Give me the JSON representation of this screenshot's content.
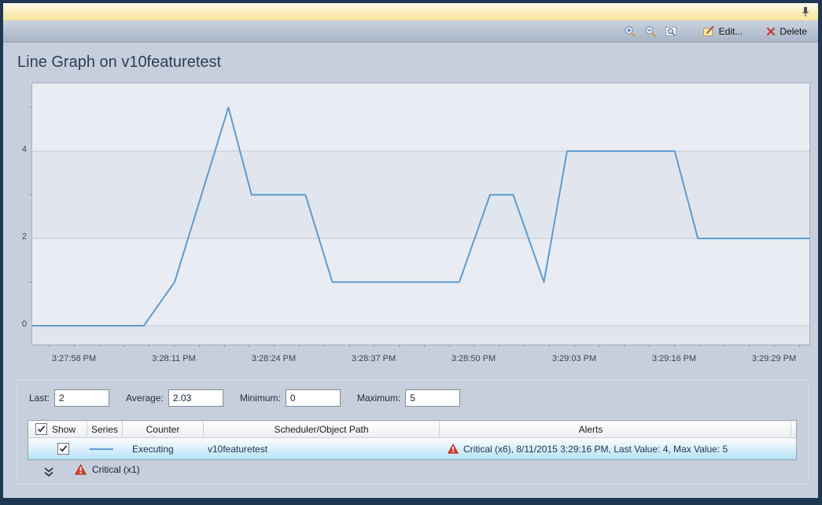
{
  "window": {
    "pin_icon": "pushpin-icon"
  },
  "toolbar": {
    "zoom_in_icon": "magnifier-plus",
    "zoom_out_icon": "magnifier-minus",
    "zoom_reset_icon": "magnifier-selection",
    "edit_label": "Edit...",
    "delete_label": "Delete"
  },
  "page": {
    "title": "Line Graph on v10featuretest"
  },
  "chart_data": {
    "type": "line",
    "title": "Line Graph on v10featuretest",
    "xlabel": "",
    "ylabel": "",
    "x_tick_labels": [
      "3:27:58 PM",
      "3:28:11 PM",
      "3:28:24 PM",
      "3:28:37 PM",
      "3:28:50 PM",
      "3:29:03 PM",
      "3:29:16 PM",
      "3:29:29 PM"
    ],
    "x_tick_seconds": [
      0,
      13,
      26,
      39,
      52,
      65,
      78,
      91
    ],
    "xlim_seconds": [
      -5.5,
      95.5
    ],
    "y_ticks": [
      0,
      2,
      4
    ],
    "y_minor_ticks": [
      1,
      3,
      5
    ],
    "ylim": [
      -0.43,
      5.55
    ],
    "grid": true,
    "legend_position": "table-below",
    "line_color": "#5b9bd5",
    "shaded_bands": [
      [
        -0.43,
        0
      ],
      [
        2,
        4
      ]
    ],
    "series": [
      {
        "name": "Executing",
        "points": [
          [
            -5.5,
            0
          ],
          [
            9,
            0
          ],
          [
            13,
            1
          ],
          [
            20,
            5
          ],
          [
            23,
            3
          ],
          [
            30,
            3
          ],
          [
            33.5,
            1
          ],
          [
            50,
            1
          ],
          [
            54,
            3
          ],
          [
            57,
            3
          ],
          [
            61,
            1
          ],
          [
            64,
            4
          ],
          [
            78,
            4
          ],
          [
            81,
            2
          ],
          [
            95.5,
            2
          ]
        ]
      }
    ]
  },
  "stats": {
    "last_label": "Last:",
    "last_value": "2",
    "average_label": "Average:",
    "average_value": "2.03",
    "minimum_label": "Minimum:",
    "minimum_value": "0",
    "maximum_label": "Maximum:",
    "maximum_value": "5"
  },
  "table": {
    "headers": {
      "show": "Show",
      "series": "Series",
      "counter": "Counter",
      "path": "Scheduler/Object Path",
      "alerts": "Alerts"
    },
    "rows": [
      {
        "show_checked": true,
        "counter": "Executing",
        "path": "v10featuretest",
        "alert": "Critical (x6), 8/11/2015 3:29:16 PM, Last Value: 4, Max Value: 5"
      }
    ]
  },
  "footer": {
    "alert_summary": "Critical (x1)"
  },
  "colors": {
    "accent_line": "#5b9bd5",
    "alert_red": "#dd3b2a",
    "selection_blue": "#b5e1f7",
    "frame_navy": "#1d3850",
    "titlebar_yellow": "#f6e49c"
  }
}
